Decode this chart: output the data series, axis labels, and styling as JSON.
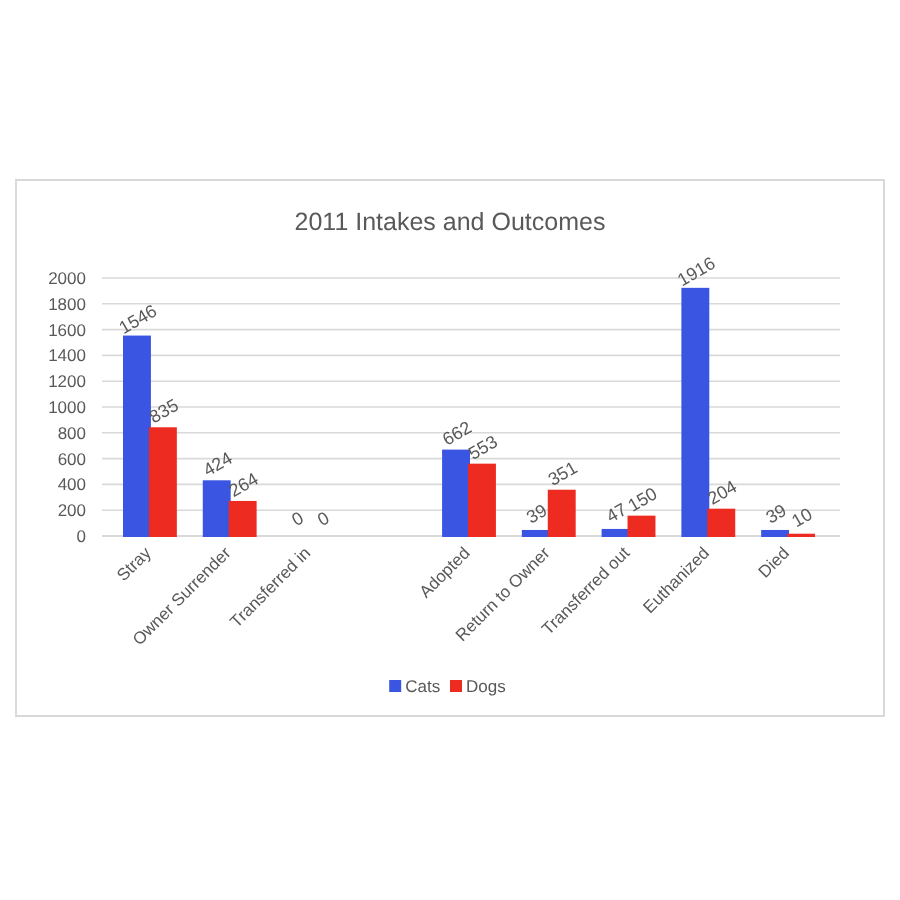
{
  "chart_data": {
    "type": "bar",
    "title": "2011 Intakes and Outcomes",
    "categories": [
      "Stray",
      "Owner Surrender",
      "Transferred in",
      null,
      "Adopted",
      "Return to Owner",
      "Transferred out",
      "Euthanized",
      "Died"
    ],
    "series": [
      {
        "name": "Cats",
        "color": "#3b55e3",
        "values": [
          1546,
          424,
          0,
          null,
          662,
          39,
          47,
          1916,
          39
        ]
      },
      {
        "name": "Dogs",
        "color": "#ee2b20",
        "values": [
          835,
          264,
          0,
          null,
          553,
          351,
          150,
          204,
          10
        ]
      }
    ],
    "ylim": [
      0,
      2000
    ],
    "yticks": [
      0,
      200,
      400,
      600,
      800,
      1000,
      1200,
      1400,
      1600,
      1800,
      2000
    ],
    "grid": true,
    "legend": "bottom",
    "data_labels": true
  }
}
